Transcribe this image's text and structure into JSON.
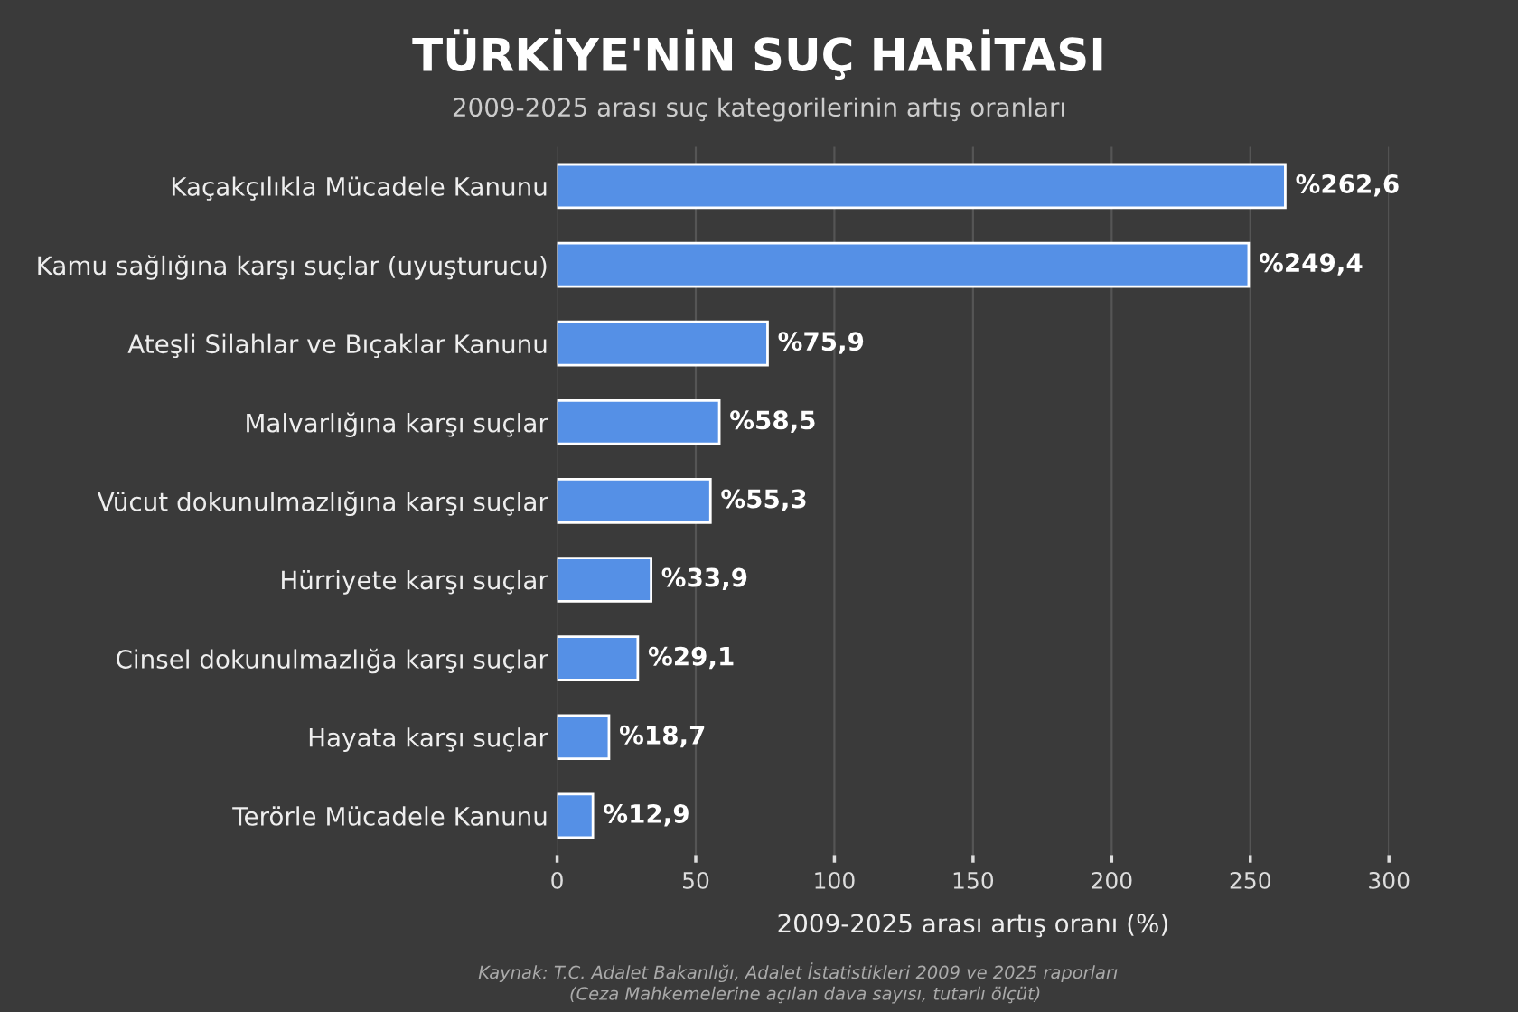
{
  "chart_data": {
    "type": "bar",
    "orientation": "horizontal",
    "title": "TÜRKİYE'NİN SUÇ HARİTASI",
    "subtitle": "2009-2025 arası suç kategorilerinin artış oranları",
    "xlabel": "2009-2025 arası artış oranı (%)",
    "categories": [
      "Kaçakçılıkla Mücadele Kanunu",
      "Kamu sağlığına karşı suçlar (uyuşturucu)",
      "Ateşli Silahlar ve Bıçaklar Kanunu",
      "Malvarlığına karşı suçlar",
      "Vücut dokunulmazlığına karşı suçlar",
      "Hürriyete karşı suçlar",
      "Cinsel dokunulmazlığa karşı suçlar",
      "Hayata karşı suçlar",
      "Terörle Mücadele Kanunu"
    ],
    "values": [
      262.6,
      249.4,
      75.9,
      58.5,
      55.3,
      33.9,
      29.1,
      18.7,
      12.9
    ],
    "value_labels": [
      "%262,6",
      "%249,4",
      "%75,9",
      "%58,5",
      "%55,3",
      "%33,9",
      "%29,1",
      "%18,7",
      "%12,9"
    ],
    "color": "#5590e6",
    "xlim": [
      0,
      300
    ],
    "xticks": [
      0,
      50,
      100,
      150,
      200,
      250,
      300
    ],
    "grid": "x",
    "legend": false,
    "annotations": [
      "Kaynak: T.C. Adalet Bakanlığı, Adalet İstatistikleri 2009 ve 2025 raporları",
      "(Ceza Mahkemelerine açılan dava sayısı, tutarlı ölçüt)"
    ]
  }
}
